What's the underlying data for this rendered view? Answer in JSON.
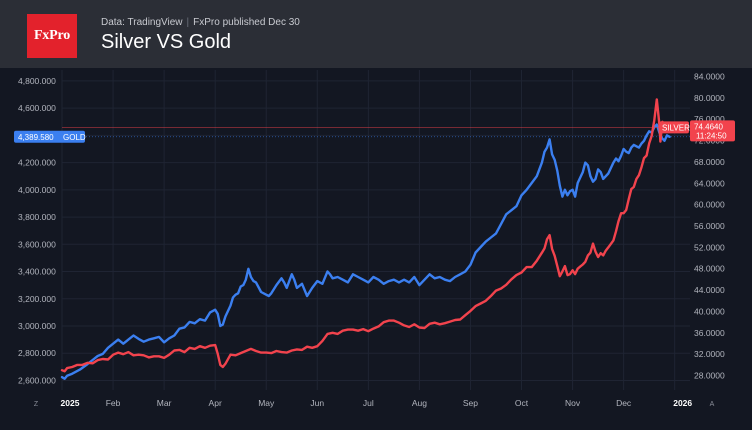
{
  "header": {
    "logo_text": "FxPro",
    "source": "Data: TradingView",
    "publisher": "FxPro published Dec 30",
    "title": "Silver VS Gold"
  },
  "colors": {
    "gold": "#3b7ff0",
    "silver": "#f2434d",
    "background": "#131722",
    "header_bg": "#2b2e36",
    "logo_bg": "#e3222c",
    "grid": "#1f2433"
  },
  "corner_labels": {
    "left": "Z",
    "right": "A"
  },
  "chart_data": {
    "type": "line",
    "title": "Silver VS Gold",
    "x_tick_labels": [
      "2025",
      "Feb",
      "Mar",
      "Apr",
      "May",
      "Jun",
      "Jul",
      "Aug",
      "Sep",
      "Oct",
      "Nov",
      "Dec",
      "2026"
    ],
    "x_range_months": [
      0,
      12.3
    ],
    "left_axis": {
      "series": "GOLD",
      "ticks": [
        "2,600.000",
        "2,800.000",
        "3,000.000",
        "3,200.000",
        "3,400.000",
        "3,600.000",
        "3,800.000",
        "4,000.000",
        "4,200.000",
        "4,400.000",
        "4,600.000",
        "4,800.000"
      ],
      "range": [
        2530,
        4880
      ]
    },
    "right_axis": {
      "series": "SILVER",
      "ticks": [
        "28.0000",
        "32.0000",
        "36.0000",
        "40.0000",
        "44.0000",
        "48.0000",
        "52.0000",
        "56.0000",
        "60.0000",
        "64.0000",
        "68.0000",
        "72.0000",
        "76.0000",
        "80.0000",
        "84.0000"
      ],
      "range": [
        25.3,
        85.2
      ]
    },
    "series": [
      {
        "name": "GOLD",
        "axis": "left",
        "last_value_label": "4,389.580",
        "points": [
          [
            0.0,
            2625
          ],
          [
            0.05,
            2612
          ],
          [
            0.1,
            2635
          ],
          [
            0.2,
            2650
          ],
          [
            0.35,
            2680
          ],
          [
            0.5,
            2720
          ],
          [
            0.6,
            2750
          ],
          [
            0.7,
            2780
          ],
          [
            0.8,
            2795
          ],
          [
            0.9,
            2840
          ],
          [
            1.0,
            2870
          ],
          [
            1.1,
            2900
          ],
          [
            1.2,
            2870
          ],
          [
            1.3,
            2900
          ],
          [
            1.4,
            2930
          ],
          [
            1.5,
            2905
          ],
          [
            1.6,
            2885
          ],
          [
            1.7,
            2900
          ],
          [
            1.8,
            2910
          ],
          [
            1.9,
            2920
          ],
          [
            2.0,
            2880
          ],
          [
            2.1,
            2910
          ],
          [
            2.2,
            2930
          ],
          [
            2.3,
            2980
          ],
          [
            2.4,
            2990
          ],
          [
            2.5,
            3030
          ],
          [
            2.6,
            3020
          ],
          [
            2.7,
            3050
          ],
          [
            2.8,
            3040
          ],
          [
            2.9,
            3100
          ],
          [
            3.0,
            3120
          ],
          [
            3.05,
            3090
          ],
          [
            3.1,
            3000
          ],
          [
            3.15,
            3010
          ],
          [
            3.2,
            3070
          ],
          [
            3.3,
            3150
          ],
          [
            3.35,
            3210
          ],
          [
            3.4,
            3230
          ],
          [
            3.45,
            3240
          ],
          [
            3.5,
            3290
          ],
          [
            3.55,
            3300
          ],
          [
            3.6,
            3340
          ],
          [
            3.65,
            3420
          ],
          [
            3.7,
            3360
          ],
          [
            3.75,
            3330
          ],
          [
            3.8,
            3320
          ],
          [
            3.9,
            3250
          ],
          [
            4.0,
            3230
          ],
          [
            4.05,
            3220
          ],
          [
            4.1,
            3240
          ],
          [
            4.2,
            3300
          ],
          [
            4.3,
            3350
          ],
          [
            4.35,
            3320
          ],
          [
            4.4,
            3280
          ],
          [
            4.5,
            3380
          ],
          [
            4.55,
            3340
          ],
          [
            4.6,
            3280
          ],
          [
            4.7,
            3310
          ],
          [
            4.8,
            3220
          ],
          [
            4.9,
            3280
          ],
          [
            5.0,
            3330
          ],
          [
            5.1,
            3310
          ],
          [
            5.2,
            3400
          ],
          [
            5.25,
            3380
          ],
          [
            5.3,
            3350
          ],
          [
            5.4,
            3360
          ],
          [
            5.5,
            3340
          ],
          [
            5.6,
            3320
          ],
          [
            5.7,
            3380
          ],
          [
            5.8,
            3360
          ],
          [
            5.9,
            3340
          ],
          [
            6.0,
            3320
          ],
          [
            6.1,
            3360
          ],
          [
            6.2,
            3340
          ],
          [
            6.3,
            3310
          ],
          [
            6.4,
            3330
          ],
          [
            6.5,
            3340
          ],
          [
            6.6,
            3320
          ],
          [
            6.7,
            3340
          ],
          [
            6.8,
            3320
          ],
          [
            6.9,
            3360
          ],
          [
            7.0,
            3300
          ],
          [
            7.1,
            3340
          ],
          [
            7.2,
            3380
          ],
          [
            7.3,
            3350
          ],
          [
            7.4,
            3360
          ],
          [
            7.5,
            3340
          ],
          [
            7.6,
            3330
          ],
          [
            7.7,
            3360
          ],
          [
            7.8,
            3380
          ],
          [
            7.9,
            3400
          ],
          [
            8.0,
            3450
          ],
          [
            8.1,
            3540
          ],
          [
            8.2,
            3580
          ],
          [
            8.3,
            3620
          ],
          [
            8.4,
            3650
          ],
          [
            8.5,
            3680
          ],
          [
            8.6,
            3750
          ],
          [
            8.7,
            3820
          ],
          [
            8.8,
            3850
          ],
          [
            8.9,
            3880
          ],
          [
            9.0,
            3960
          ],
          [
            9.1,
            4000
          ],
          [
            9.2,
            4050
          ],
          [
            9.3,
            4100
          ],
          [
            9.4,
            4200
          ],
          [
            9.45,
            4280
          ],
          [
            9.5,
            4310
          ],
          [
            9.55,
            4370
          ],
          [
            9.6,
            4260
          ],
          [
            9.65,
            4220
          ],
          [
            9.7,
            4140
          ],
          [
            9.75,
            4030
          ],
          [
            9.8,
            3950
          ],
          [
            9.85,
            4000
          ],
          [
            9.9,
            3960
          ],
          [
            9.95,
            3990
          ],
          [
            10.0,
            4000
          ],
          [
            10.05,
            3950
          ],
          [
            10.1,
            4050
          ],
          [
            10.15,
            4090
          ],
          [
            10.2,
            4130
          ],
          [
            10.25,
            4200
          ],
          [
            10.3,
            4180
          ],
          [
            10.35,
            4100
          ],
          [
            10.4,
            4060
          ],
          [
            10.45,
            4080
          ],
          [
            10.5,
            4150
          ],
          [
            10.55,
            4130
          ],
          [
            10.6,
            4080
          ],
          [
            10.7,
            4120
          ],
          [
            10.8,
            4200
          ],
          [
            10.85,
            4230
          ],
          [
            10.9,
            4210
          ],
          [
            10.95,
            4250
          ],
          [
            11.0,
            4300
          ],
          [
            11.05,
            4280
          ],
          [
            11.1,
            4270
          ],
          [
            11.15,
            4310
          ],
          [
            11.2,
            4330
          ],
          [
            11.25,
            4320
          ],
          [
            11.3,
            4310
          ],
          [
            11.35,
            4340
          ],
          [
            11.4,
            4360
          ],
          [
            11.45,
            4400
          ],
          [
            11.5,
            4430
          ],
          [
            11.55,
            4420
          ],
          [
            11.6,
            4460
          ],
          [
            11.65,
            4480
          ],
          [
            11.7,
            4420
          ],
          [
            11.75,
            4380
          ],
          [
            11.8,
            4360
          ],
          [
            11.85,
            4400
          ],
          [
            11.9,
            4389.58
          ]
        ]
      },
      {
        "name": "SILVER",
        "axis": "right",
        "last_value_label": "74.4640",
        "time_label": "11:24:50",
        "points": [
          [
            0.0,
            29.0
          ],
          [
            0.05,
            28.8
          ],
          [
            0.1,
            29.4
          ],
          [
            0.2,
            29.6
          ],
          [
            0.3,
            30.0
          ],
          [
            0.4,
            30.0
          ],
          [
            0.5,
            30.4
          ],
          [
            0.6,
            30.3
          ],
          [
            0.7,
            30.9
          ],
          [
            0.8,
            31.1
          ],
          [
            0.9,
            31.0
          ],
          [
            1.0,
            31.9
          ],
          [
            1.1,
            32.3
          ],
          [
            1.2,
            32.0
          ],
          [
            1.3,
            32.4
          ],
          [
            1.4,
            31.8
          ],
          [
            1.5,
            31.9
          ],
          [
            1.6,
            31.8
          ],
          [
            1.7,
            31.4
          ],
          [
            1.8,
            31.6
          ],
          [
            1.9,
            31.6
          ],
          [
            2.0,
            31.3
          ],
          [
            2.1,
            31.9
          ],
          [
            2.2,
            32.7
          ],
          [
            2.3,
            32.8
          ],
          [
            2.4,
            32.4
          ],
          [
            2.5,
            33.2
          ],
          [
            2.6,
            33.0
          ],
          [
            2.7,
            33.5
          ],
          [
            2.8,
            33.2
          ],
          [
            2.9,
            33.6
          ],
          [
            3.0,
            33.7
          ],
          [
            3.05,
            32.1
          ],
          [
            3.1,
            30.0
          ],
          [
            3.15,
            29.6
          ],
          [
            3.2,
            30.2
          ],
          [
            3.3,
            31.9
          ],
          [
            3.4,
            31.8
          ],
          [
            3.5,
            32.2
          ],
          [
            3.6,
            32.6
          ],
          [
            3.7,
            33.0
          ],
          [
            3.8,
            32.6
          ],
          [
            3.9,
            32.3
          ],
          [
            4.0,
            32.3
          ],
          [
            4.1,
            32.2
          ],
          [
            4.2,
            32.6
          ],
          [
            4.3,
            32.4
          ],
          [
            4.4,
            32.3
          ],
          [
            4.5,
            32.7
          ],
          [
            4.6,
            32.9
          ],
          [
            4.7,
            32.8
          ],
          [
            4.8,
            33.4
          ],
          [
            4.9,
            33.2
          ],
          [
            5.0,
            33.5
          ],
          [
            5.1,
            34.5
          ],
          [
            5.2,
            35.8
          ],
          [
            5.3,
            36.0
          ],
          [
            5.4,
            35.8
          ],
          [
            5.5,
            36.4
          ],
          [
            5.6,
            36.6
          ],
          [
            5.7,
            36.6
          ],
          [
            5.8,
            36.4
          ],
          [
            5.9,
            36.7
          ],
          [
            6.0,
            36.3
          ],
          [
            6.1,
            36.8
          ],
          [
            6.2,
            37.2
          ],
          [
            6.3,
            38.0
          ],
          [
            6.4,
            38.3
          ],
          [
            6.5,
            38.3
          ],
          [
            6.6,
            37.9
          ],
          [
            6.7,
            37.4
          ],
          [
            6.8,
            37.1
          ],
          [
            6.9,
            37.6
          ],
          [
            7.0,
            37.0
          ],
          [
            7.1,
            36.9
          ],
          [
            7.2,
            37.7
          ],
          [
            7.3,
            37.9
          ],
          [
            7.4,
            37.6
          ],
          [
            7.5,
            37.8
          ],
          [
            7.6,
            38.1
          ],
          [
            7.7,
            38.4
          ],
          [
            7.8,
            38.5
          ],
          [
            7.9,
            39.3
          ],
          [
            8.0,
            40.1
          ],
          [
            8.1,
            41.0
          ],
          [
            8.2,
            41.5
          ],
          [
            8.3,
            42.0
          ],
          [
            8.4,
            42.9
          ],
          [
            8.5,
            43.9
          ],
          [
            8.6,
            44.3
          ],
          [
            8.7,
            45.0
          ],
          [
            8.8,
            46.0
          ],
          [
            8.9,
            46.8
          ],
          [
            9.0,
            47.3
          ],
          [
            9.1,
            48.3
          ],
          [
            9.2,
            48.3
          ],
          [
            9.3,
            49.5
          ],
          [
            9.4,
            51.0
          ],
          [
            9.45,
            51.8
          ],
          [
            9.5,
            53.5
          ],
          [
            9.55,
            54.3
          ],
          [
            9.6,
            51.7
          ],
          [
            9.65,
            50.4
          ],
          [
            9.7,
            48.5
          ],
          [
            9.75,
            46.6
          ],
          [
            9.8,
            47.5
          ],
          [
            9.85,
            48.5
          ],
          [
            9.9,
            46.8
          ],
          [
            9.95,
            47.0
          ],
          [
            10.0,
            47.7
          ],
          [
            10.05,
            47.0
          ],
          [
            10.1,
            48.0
          ],
          [
            10.15,
            48.4
          ],
          [
            10.2,
            48.8
          ],
          [
            10.25,
            49.3
          ],
          [
            10.3,
            50.5
          ],
          [
            10.35,
            51.0
          ],
          [
            10.4,
            52.7
          ],
          [
            10.45,
            51.2
          ],
          [
            10.5,
            50.2
          ],
          [
            10.55,
            50.9
          ],
          [
            10.6,
            50.5
          ],
          [
            10.65,
            51.4
          ],
          [
            10.7,
            52.0
          ],
          [
            10.8,
            53.3
          ],
          [
            10.85,
            55.0
          ],
          [
            10.9,
            56.9
          ],
          [
            10.95,
            58.4
          ],
          [
            11.0,
            58.4
          ],
          [
            11.05,
            59.0
          ],
          [
            11.1,
            61.0
          ],
          [
            11.15,
            62.9
          ],
          [
            11.2,
            63.3
          ],
          [
            11.25,
            64.8
          ],
          [
            11.3,
            65.5
          ],
          [
            11.35,
            67.0
          ],
          [
            11.4,
            68.7
          ],
          [
            11.45,
            69.2
          ],
          [
            11.5,
            71.5
          ],
          [
            11.55,
            72.9
          ],
          [
            11.6,
            75.8
          ],
          [
            11.65,
            79.7
          ],
          [
            11.7,
            75.0
          ],
          [
            11.72,
            71.8
          ],
          [
            11.76,
            75.5
          ],
          [
            11.8,
            74.3
          ],
          [
            11.85,
            74.6
          ],
          [
            11.9,
            74.464
          ]
        ]
      }
    ]
  }
}
